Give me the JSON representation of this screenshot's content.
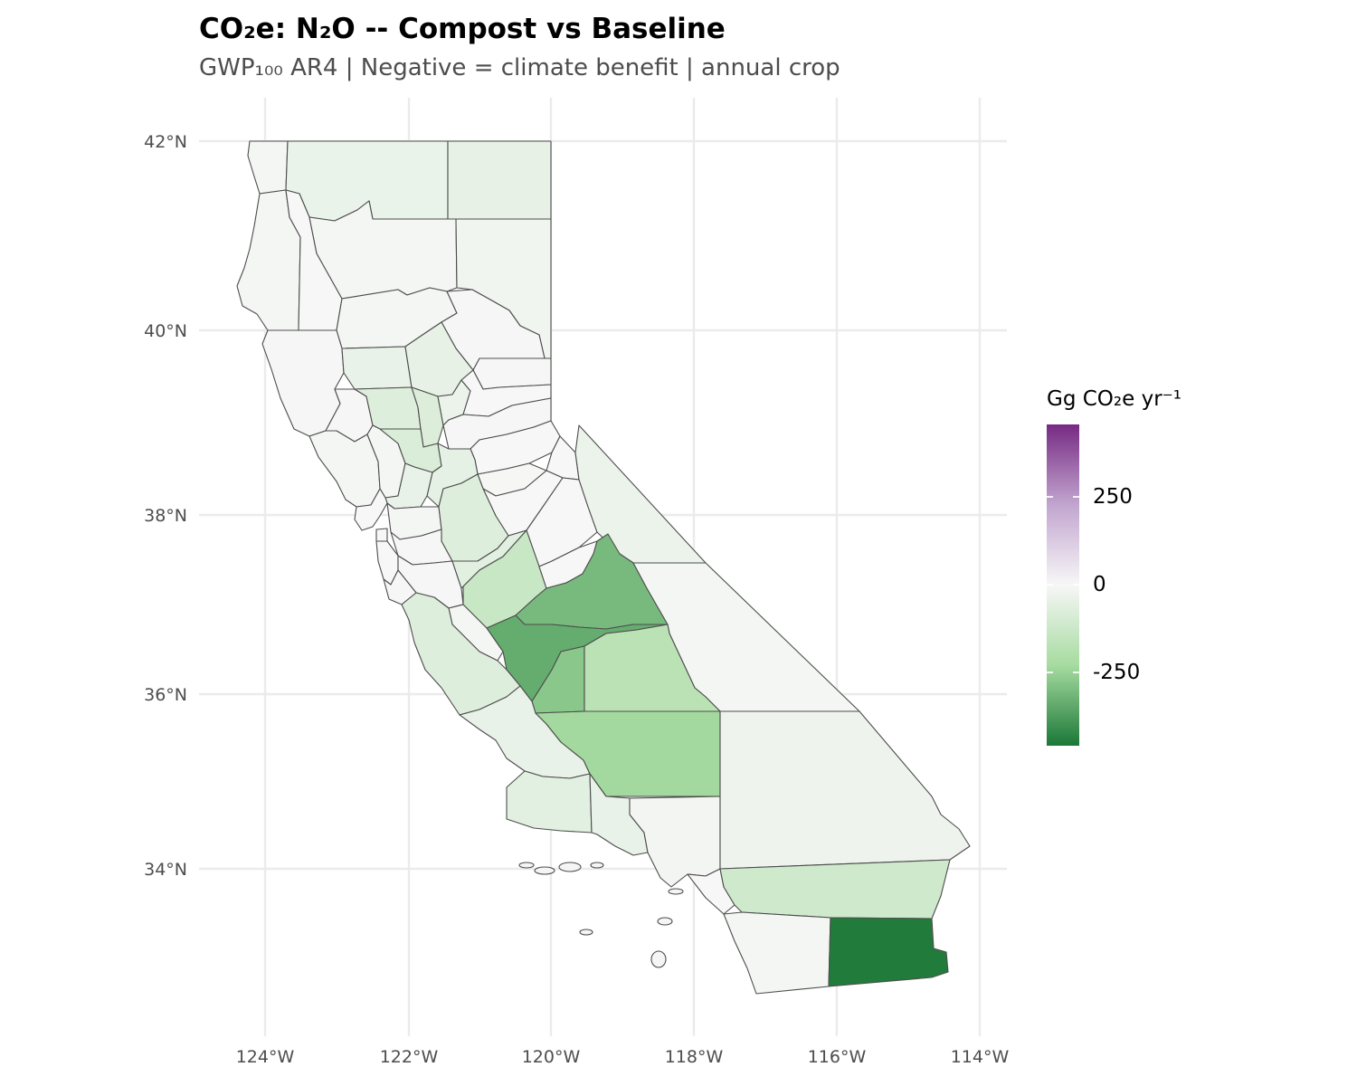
{
  "title": "CO₂e: N₂O -- Compost vs Baseline",
  "subtitle": "GWP₁₀₀ AR4 | Negative = climate benefit | annual crop",
  "axes": {
    "lon_ticks": [
      "124°W",
      "122°W",
      "120°W",
      "118°W",
      "116°W",
      "114°W"
    ],
    "lat_ticks": [
      "42°N",
      "40°N",
      "38°N",
      "36°N",
      "34°N"
    ],
    "grid": true
  },
  "legend": {
    "title": "Gg CO₂e yr⁻¹",
    "ticks": [
      "250",
      "0",
      "-250"
    ],
    "colors": [
      "#762a83",
      "#c2a5cf",
      "#f7f7f7",
      "#a6dba0",
      "#1b7837"
    ]
  },
  "chart_data": {
    "type": "choropleth",
    "region": "California counties",
    "scale": {
      "min": -450,
      "max": 450,
      "midpoint": 0
    },
    "counties": [
      {
        "name": "Del Norte",
        "value": -8
      },
      {
        "name": "Siskiyou",
        "value": -35
      },
      {
        "name": "Modoc",
        "value": -45
      },
      {
        "name": "Humboldt",
        "value": -10
      },
      {
        "name": "Trinity",
        "value": -2
      },
      {
        "name": "Shasta",
        "value": -8
      },
      {
        "name": "Lassen",
        "value": -20
      },
      {
        "name": "Tehama",
        "value": -8
      },
      {
        "name": "Plumas",
        "value": -5
      },
      {
        "name": "Mendocino",
        "value": -6
      },
      {
        "name": "Glenn",
        "value": -40
      },
      {
        "name": "Butte",
        "value": -45
      },
      {
        "name": "Sierra",
        "value": -5
      },
      {
        "name": "Lake",
        "value": -5
      },
      {
        "name": "Colusa",
        "value": -70
      },
      {
        "name": "Sutter",
        "value": -75
      },
      {
        "name": "Yuba",
        "value": -30
      },
      {
        "name": "Nevada",
        "value": -3
      },
      {
        "name": "Placer",
        "value": -5
      },
      {
        "name": "El Dorado",
        "value": -3
      },
      {
        "name": "Alpine",
        "value": -2
      },
      {
        "name": "Sonoma",
        "value": -12
      },
      {
        "name": "Napa",
        "value": -10
      },
      {
        "name": "Yolo",
        "value": -80
      },
      {
        "name": "Sacramento",
        "value": -50
      },
      {
        "name": "Solano",
        "value": -40
      },
      {
        "name": "Amador",
        "value": -4
      },
      {
        "name": "Calaveras",
        "value": -3
      },
      {
        "name": "Tuolumne",
        "value": -2
      },
      {
        "name": "Mono",
        "value": -30
      },
      {
        "name": "Marin",
        "value": -3
      },
      {
        "name": "Contra Costa",
        "value": -8
      },
      {
        "name": "San Joaquin",
        "value": -70
      },
      {
        "name": "Alameda",
        "value": -5
      },
      {
        "name": "San Francisco",
        "value": 0
      },
      {
        "name": "San Mateo",
        "value": -2
      },
      {
        "name": "Santa Clara",
        "value": -5
      },
      {
        "name": "Santa Cruz",
        "value": -5
      },
      {
        "name": "Stanislaus",
        "value": -60
      },
      {
        "name": "Merced",
        "value": -130
      },
      {
        "name": "Mariposa",
        "value": -3
      },
      {
        "name": "Madera",
        "value": -300
      },
      {
        "name": "Fresno",
        "value": -330
      },
      {
        "name": "Inyo",
        "value": -10
      },
      {
        "name": "San Benito",
        "value": -8
      },
      {
        "name": "Monterey",
        "value": -70
      },
      {
        "name": "Kings",
        "value": -270
      },
      {
        "name": "Tulare",
        "value": -170
      },
      {
        "name": "San Luis Obispo",
        "value": -40
      },
      {
        "name": "Kern",
        "value": -230
      },
      {
        "name": "Santa Barbara",
        "value": -60
      },
      {
        "name": "Ventura",
        "value": -40
      },
      {
        "name": "Los Angeles",
        "value": -15
      },
      {
        "name": "San Bernardino",
        "value": -25
      },
      {
        "name": "Orange",
        "value": -3
      },
      {
        "name": "Riverside",
        "value": -110
      },
      {
        "name": "San Diego",
        "value": -10
      },
      {
        "name": "Imperial",
        "value": -440
      }
    ]
  }
}
